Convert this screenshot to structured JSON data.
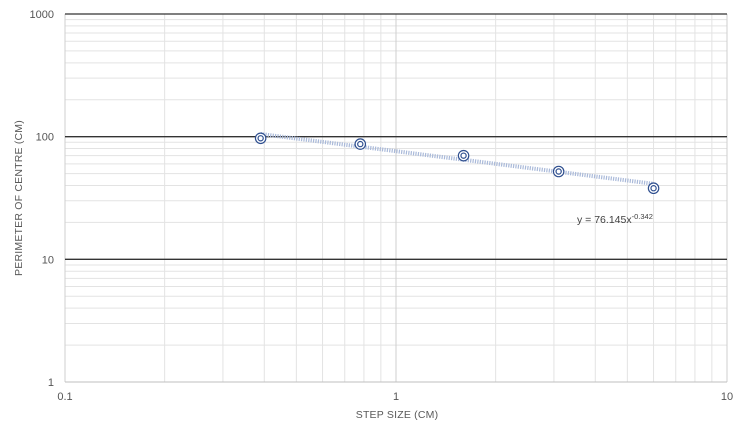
{
  "chart_data": {
    "type": "scatter",
    "title": "",
    "xlabel": "STEP SIZE (CM)",
    "ylabel": "PERIMETER OF CENTRE (CM)",
    "x_scale": "log",
    "y_scale": "log",
    "xlim": [
      0.1,
      10
    ],
    "ylim": [
      1,
      1000
    ],
    "x_tick_labels": [
      "0.1",
      "1",
      "10"
    ],
    "y_tick_labels": [
      "1",
      "10",
      "100",
      "1000"
    ],
    "grid": true,
    "points": [
      {
        "x": 0.39,
        "y": 97
      },
      {
        "x": 0.78,
        "y": 87
      },
      {
        "x": 1.6,
        "y": 70
      },
      {
        "x": 3.1,
        "y": 52
      },
      {
        "x": 6.0,
        "y": 38
      }
    ],
    "trendline": {
      "type": "power",
      "a": 76.145,
      "b": -0.342,
      "x_range": [
        0.39,
        6.0
      ],
      "label_prefix": "y = 76.145x",
      "label_exponent": "-0.342"
    },
    "colors": {
      "marker": "#2F4F8F",
      "trendline": "#A9B9D9",
      "major_grid": "#333333",
      "minor_grid": "#E3E3E3"
    }
  }
}
